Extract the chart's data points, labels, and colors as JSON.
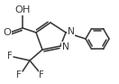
{
  "bg_color": "#ffffff",
  "line_color": "#3a3a3a",
  "line_width": 1.15,
  "font_size": 7.2,
  "figsize": [
    1.32,
    0.93
  ],
  "dpi": 100,
  "cooh_o_label": "O",
  "cooh_oh_label": "OH",
  "f_labels": [
    "F",
    "F",
    "F"
  ],
  "n_labels": [
    "N",
    "N"
  ]
}
